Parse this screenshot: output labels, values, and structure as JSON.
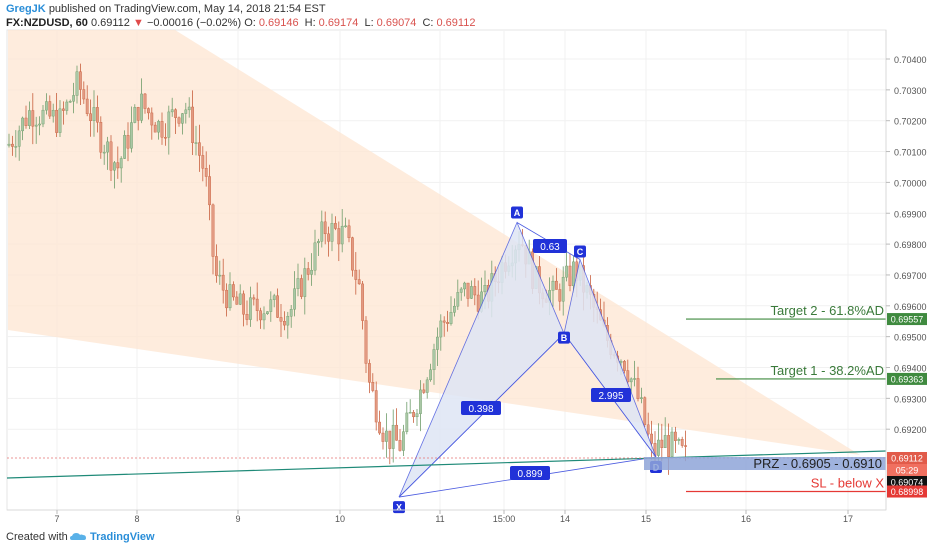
{
  "header": {
    "author": "GregJK",
    "published_text": "published on TradingView.com, May 14, 2018 21:54 EST",
    "symbol": "FX:NZDUSD, 60",
    "last": "0.69112",
    "change": "−0.00016 (−0.02%)",
    "o_label": "O:",
    "o_value": "0.69146",
    "h_label": "H:",
    "h_value": "0.69174",
    "l_label": "L:",
    "l_value": "0.69074",
    "c_label": "C:",
    "c_value": "0.69112"
  },
  "footer": {
    "created_with": "Created with",
    "brand": "TradingView"
  },
  "colors": {
    "up_candle": "#a9c7a5",
    "down_candle": "#e29a82",
    "triangle_fill": "#fde6d2",
    "pattern_fill": "#dfe6f5",
    "pattern_line": "#4b5be0",
    "label_bg": "#2132d8",
    "target_line": "#3f8a3f",
    "sl_line": "#e53935",
    "trend_line": "#1f8a78",
    "prz_box": "#8ea4d8"
  },
  "chart_data": {
    "type": "candlestick",
    "y_ticks": [
      "0.70400",
      "0.70300",
      "0.70200",
      "0.70100",
      "0.70000",
      "0.69900",
      "0.69800",
      "0.69700",
      "0.69600",
      "0.69500",
      "0.69400",
      "0.69300",
      "0.69200"
    ],
    "x_ticks": [
      "7",
      "8",
      "9",
      "10",
      "11",
      "15:00",
      "14",
      "15",
      "16",
      "17"
    ],
    "ylim": [
      0.6897,
      0.7052
    ],
    "pattern_points": [
      {
        "name": "X",
        "price": 0.6898
      },
      {
        "name": "A",
        "price": 0.6987
      },
      {
        "name": "B",
        "price": 0.6951
      },
      {
        "name": "C",
        "price": 0.6975
      },
      {
        "name": "D",
        "price": 0.6911
      }
    ],
    "ratios": [
      {
        "label": "0.63"
      },
      {
        "label": "0.398"
      },
      {
        "label": "2.995"
      },
      {
        "label": "0.899"
      }
    ],
    "levels": [
      {
        "label": "Target 2 - 61.8%AD",
        "price": 0.69557,
        "price_label": "0.69557"
      },
      {
        "label": "Target 1 - 38.2%AD",
        "price": 0.69363,
        "price_label": "0.69363"
      },
      {
        "label": "PRZ - 0.6905 - 0.6910",
        "price": 0.6909
      },
      {
        "label": "SL - below X",
        "price": 0.68998,
        "price_label": "0.68998"
      }
    ],
    "price_tags": [
      {
        "text": "0.69112",
        "sub": "05:29"
      },
      {
        "text": "0.69074"
      }
    ]
  }
}
